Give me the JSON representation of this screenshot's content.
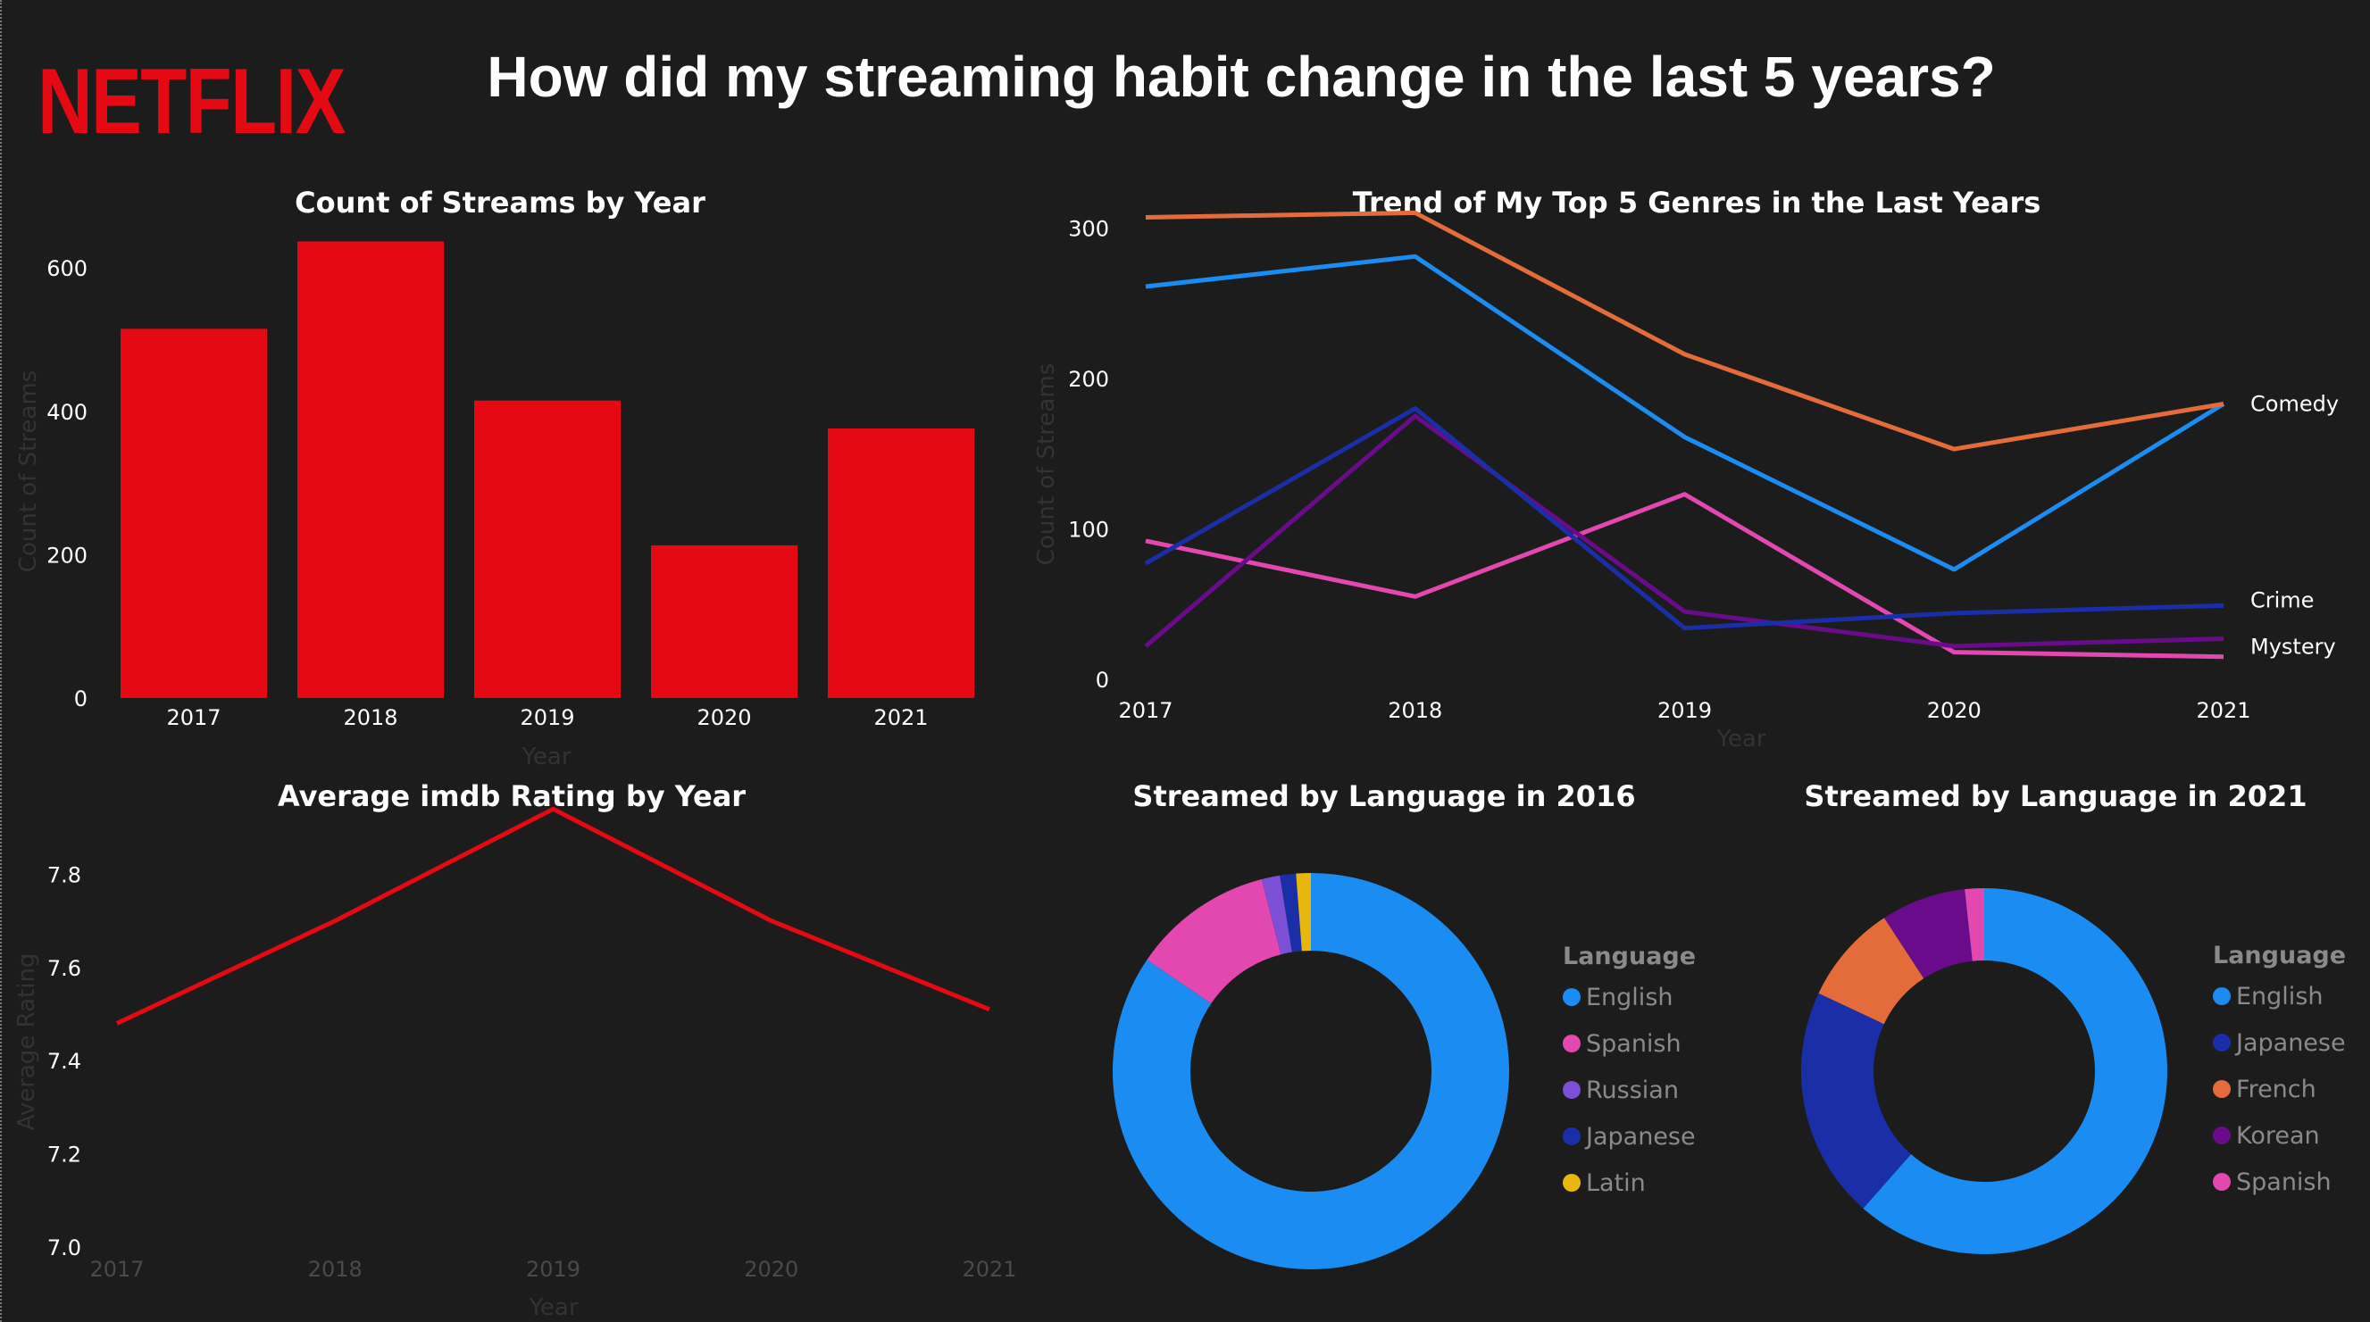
{
  "logo": "NETFLIX",
  "page_title": "How did my streaming habit change in the last 5 years?",
  "colors": {
    "netflix_red": "#e50914",
    "background": "#1c1c1c"
  },
  "chart_data": [
    {
      "type": "bar",
      "title": "Count of Streams by Year",
      "xlabel": "Year",
      "ylabel": "Count of Streams",
      "categories": [
        "2017",
        "2018",
        "2019",
        "2020",
        "2021"
      ],
      "values": [
        515,
        637,
        415,
        213,
        376
      ],
      "ylim": [
        0,
        650
      ],
      "yticks": [
        "0",
        "200",
        "400",
        "600"
      ],
      "color": "#e50914",
      "grid": false
    },
    {
      "type": "line",
      "title": "Trend of My Top 5 Genres in the Last Years",
      "xlabel": "Year",
      "ylabel": "Count of Streams",
      "categories": [
        "2017",
        "2018",
        "2019",
        "2020",
        "2021"
      ],
      "ylim": [
        0,
        315
      ],
      "yticks": [
        "0",
        "100",
        "200",
        "300"
      ],
      "series": [
        {
          "name": "",
          "color": "#e36c3a",
          "values": [
            307,
            310,
            216,
            153,
            183
          ]
        },
        {
          "name": "Comedy",
          "color": "#1b8cf2",
          "values": [
            261,
            281,
            161,
            73,
            183
          ]
        },
        {
          "name": "Crime",
          "color": "#1a2ea8",
          "values": [
            77,
            180,
            34,
            44,
            49
          ]
        },
        {
          "name": "Mystery",
          "color": "#6a0b8c",
          "values": [
            22,
            175,
            45,
            22,
            27
          ]
        },
        {
          "name": "",
          "color": "#e348b0",
          "values": [
            92,
            55,
            123,
            18,
            15
          ]
        }
      ],
      "end_labels": [
        {
          "series": 1,
          "text": "Comedy"
        },
        {
          "series": 2,
          "text": "Crime"
        },
        {
          "series": 3,
          "text": "Mystery"
        }
      ],
      "grid": false
    },
    {
      "type": "line",
      "title": "Average imdb Rating by Year",
      "xlabel": "Year",
      "ylabel": "Average Rating",
      "categories": [
        "2017",
        "2018",
        "2019",
        "2020",
        "2021"
      ],
      "series": [
        {
          "name": "",
          "color": "#e50914",
          "values": [
            7.48,
            7.7,
            7.94,
            7.7,
            7.51
          ]
        }
      ],
      "ylim": [
        7.0,
        8.0
      ],
      "yticks": [
        "7.0",
        "7.2",
        "7.4",
        "7.6",
        "7.8"
      ],
      "grid": false
    },
    {
      "type": "pie",
      "title": "Streamed by Language in 2016",
      "legend_title": "Language",
      "legend_position": "right",
      "slices": [
        {
          "label": "English",
          "value": 84.5,
          "color": "#1b8cf2"
        },
        {
          "label": "Spanish",
          "value": 11.5,
          "color": "#e348b0"
        },
        {
          "label": "Russian",
          "value": 1.5,
          "color": "#7b4fd6"
        },
        {
          "label": "Japanese",
          "value": 1.3,
          "color": "#1a2ea8"
        },
        {
          "label": "Latin",
          "value": 1.2,
          "color": "#e8b60c"
        }
      ]
    },
    {
      "type": "pie",
      "title": "Streamed by Language in 2021",
      "legend_title": "Language",
      "legend_position": "right",
      "slices": [
        {
          "label": "English",
          "value": 61.5,
          "color": "#1b8cf2"
        },
        {
          "label": "Japanese",
          "value": 20.5,
          "color": "#1a2ea8"
        },
        {
          "label": "French",
          "value": 8.8,
          "color": "#e36c3a"
        },
        {
          "label": "Korean",
          "value": 7.5,
          "color": "#6a0b8c"
        },
        {
          "label": "Spanish",
          "value": 1.7,
          "color": "#e348b0"
        }
      ]
    }
  ]
}
